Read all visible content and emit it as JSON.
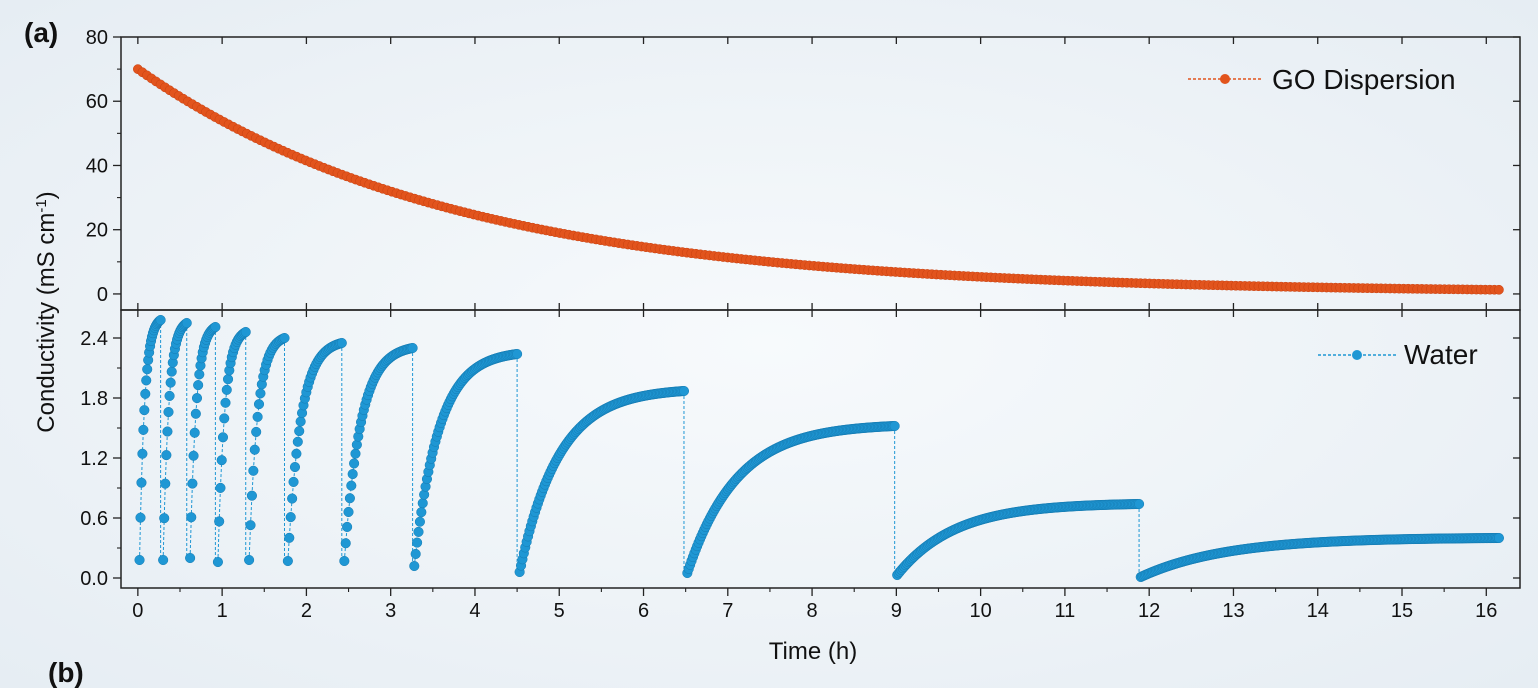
{
  "chart_data": {
    "type": "scatter",
    "panel_labels": [
      "(a)",
      "(b)"
    ],
    "xlabel": "Time (h)",
    "ylabel": "Conductivity (mS cm",
    "ylabel_superscript": "-1",
    "ylabel_close": ")",
    "xlim": [
      -0.2,
      16.4
    ],
    "x_ticks": [
      "0",
      "1",
      "2",
      "3",
      "4",
      "5",
      "6",
      "7",
      "8",
      "9",
      "10",
      "11",
      "12",
      "13",
      "14",
      "15",
      "16"
    ],
    "grid": false,
    "panels": [
      {
        "name": "top",
        "ylim": [
          -5,
          80
        ],
        "y_ticks": [
          "0",
          "20",
          "40",
          "60",
          "80"
        ],
        "legend": {
          "label": "GO Dispersion",
          "placement": "top-right"
        },
        "color": "#e2541d",
        "series": {
          "model": "exponential-decay",
          "t_start": 0.0,
          "t_end": 16.15,
          "y_start": 70,
          "y_end": 0.3,
          "tau_h": 3.8
        }
      },
      {
        "name": "bottom",
        "ylim": [
          -0.1,
          2.68
        ],
        "y_ticks": [
          "0.0",
          "0.6",
          "1.2",
          "1.8",
          "2.4"
        ],
        "legend": {
          "label": "Water",
          "placement": "top-right"
        },
        "color": "#1f97d4",
        "cycles": [
          {
            "t_start": 0.02,
            "t_end": 0.27,
            "y_min": 0.18,
            "y_max": 2.58
          },
          {
            "t_start": 0.3,
            "t_end": 0.58,
            "y_min": 0.18,
            "y_max": 2.55
          },
          {
            "t_start": 0.62,
            "t_end": 0.92,
            "y_min": 0.2,
            "y_max": 2.51
          },
          {
            "t_start": 0.95,
            "t_end": 1.28,
            "y_min": 0.16,
            "y_max": 2.46
          },
          {
            "t_start": 1.32,
            "t_end": 1.74,
            "y_min": 0.18,
            "y_max": 2.4
          },
          {
            "t_start": 1.78,
            "t_end": 2.42,
            "y_min": 0.17,
            "y_max": 2.35
          },
          {
            "t_start": 2.45,
            "t_end": 3.26,
            "y_min": 0.17,
            "y_max": 2.3
          },
          {
            "t_start": 3.28,
            "t_end": 4.5,
            "y_min": 0.12,
            "y_max": 2.24
          },
          {
            "t_start": 4.53,
            "t_end": 6.48,
            "y_min": 0.06,
            "y_max": 1.87
          },
          {
            "t_start": 6.52,
            "t_end": 8.98,
            "y_min": 0.05,
            "y_max": 1.52
          },
          {
            "t_start": 9.01,
            "t_end": 11.88,
            "y_min": 0.03,
            "y_max": 0.74
          },
          {
            "t_start": 11.9,
            "t_end": 16.15,
            "y_min": 0.01,
            "y_max": 0.4
          }
        ]
      }
    ]
  }
}
